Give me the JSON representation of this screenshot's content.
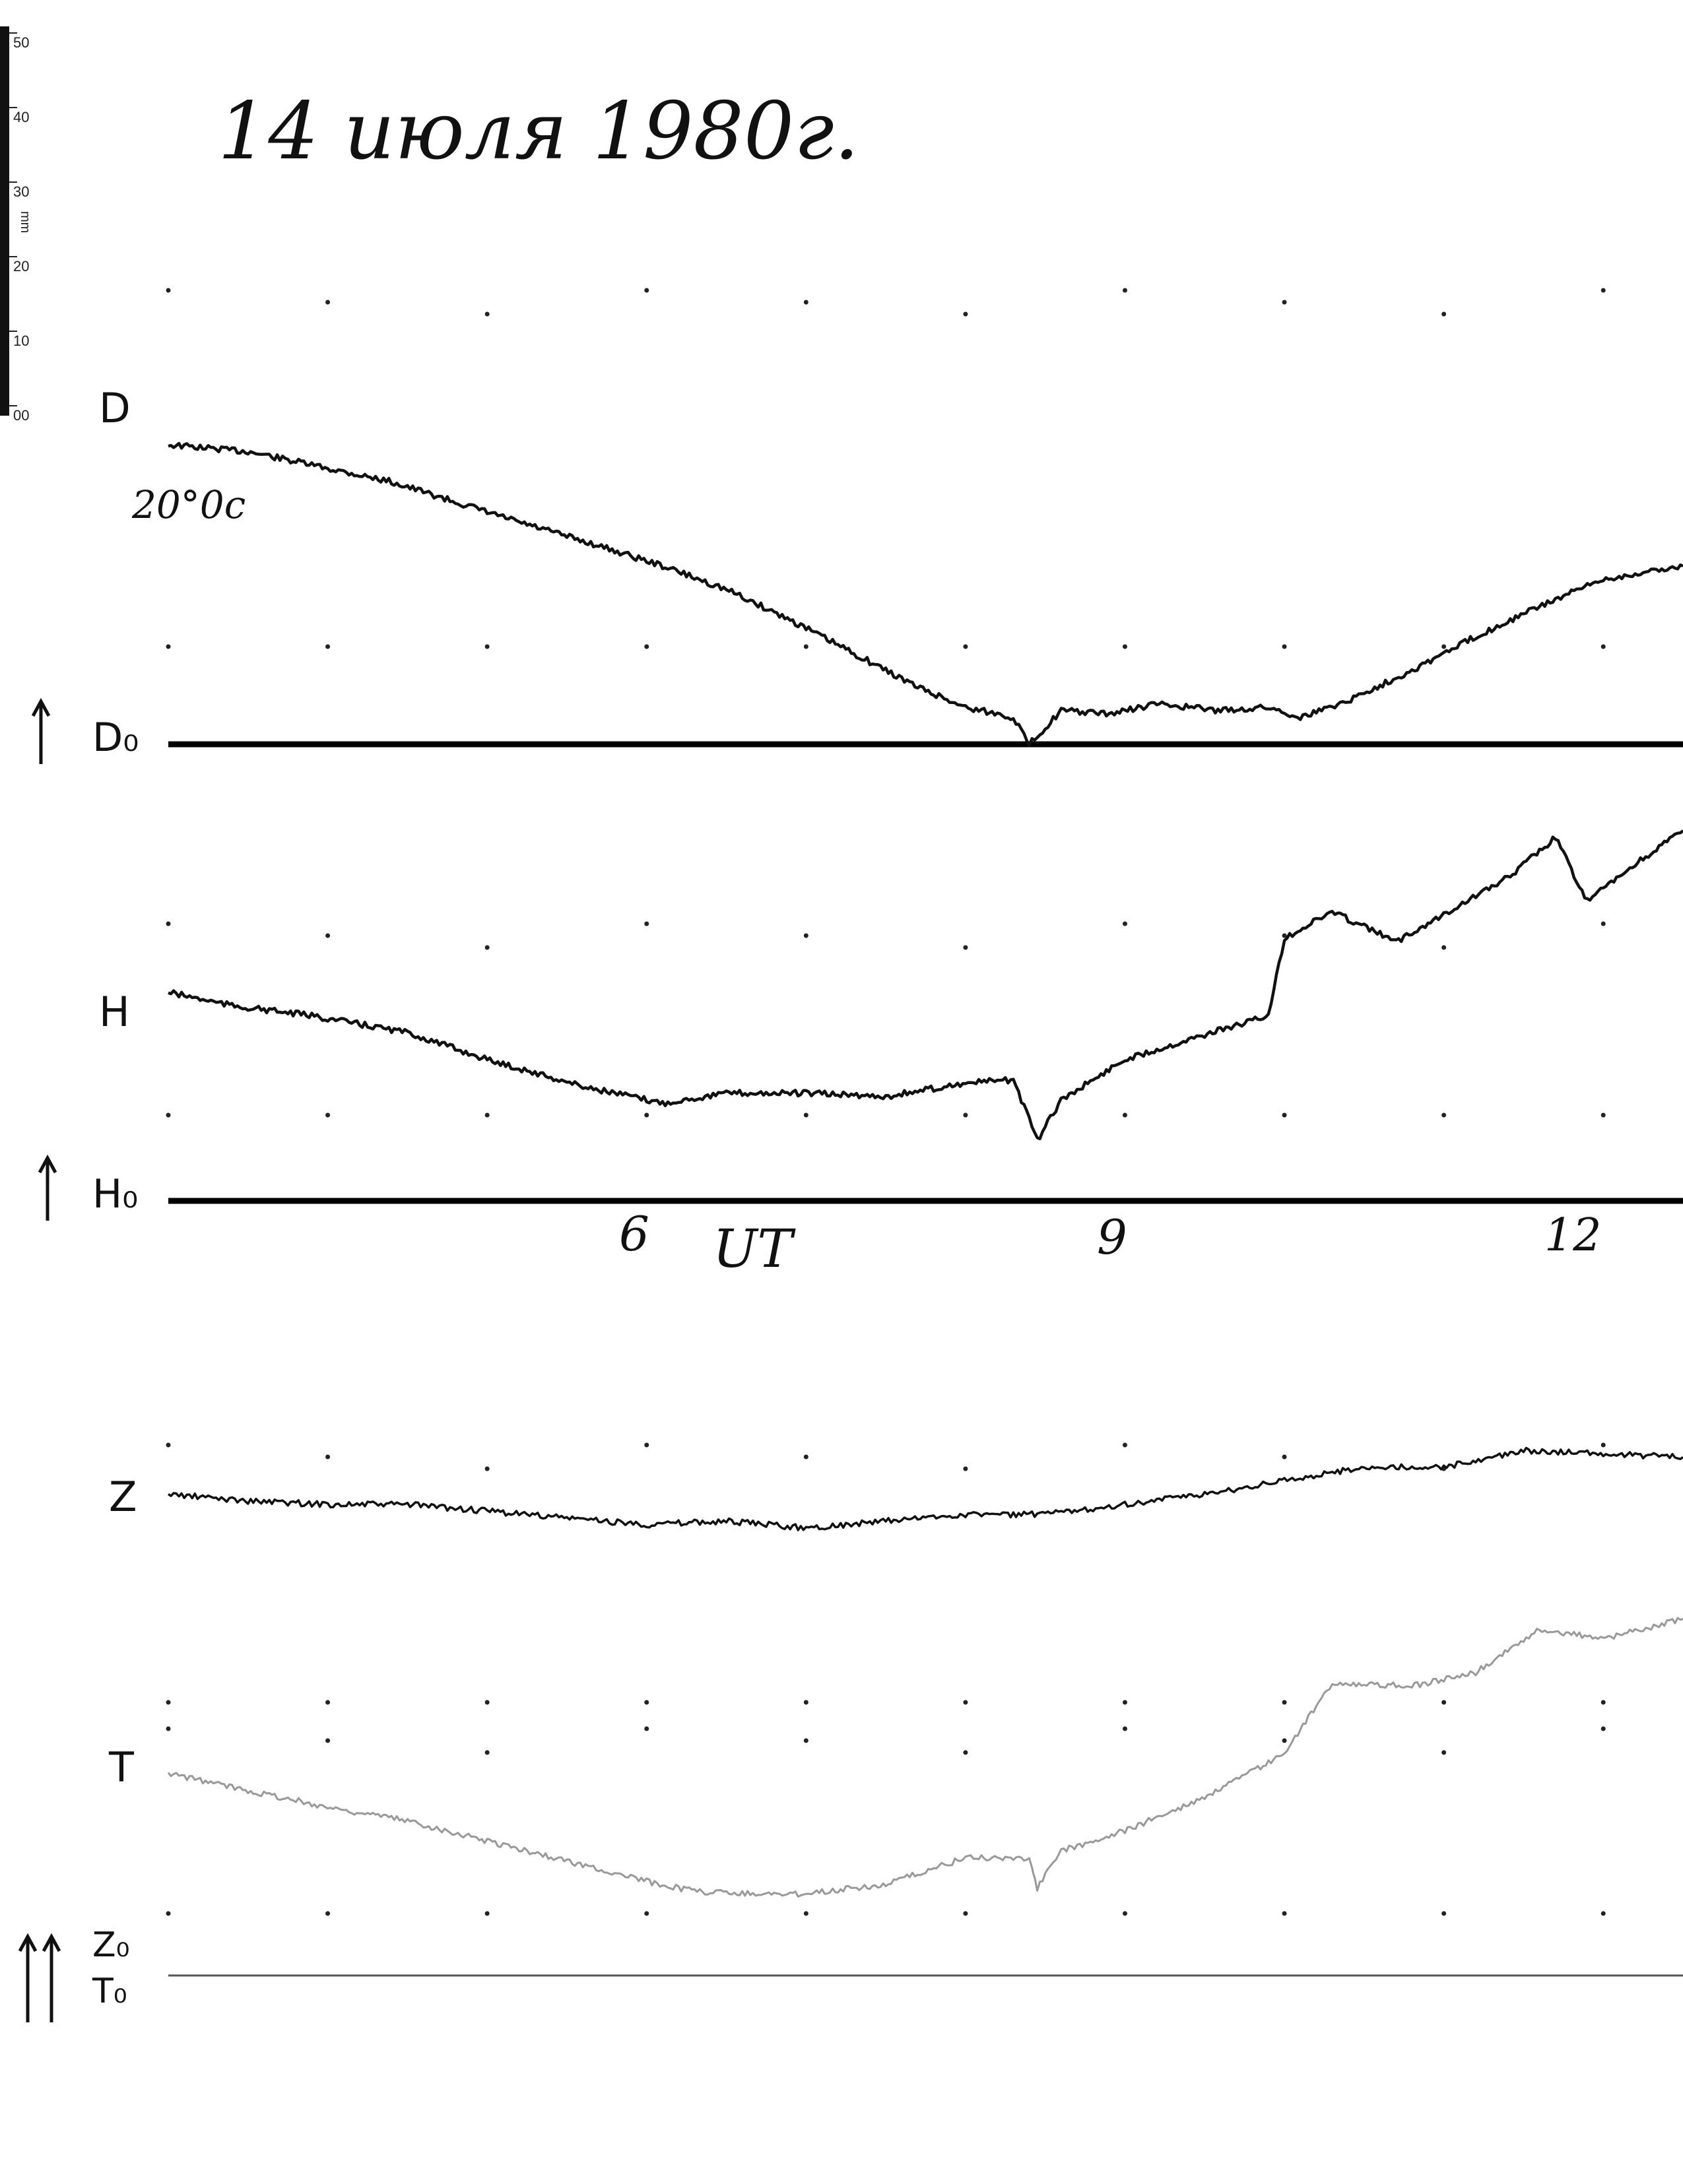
{
  "title": "14 июля 1980г.",
  "scale_label": "20°0с",
  "ruler": {
    "unit": "mm",
    "ticks": [
      "50",
      "40",
      "30",
      "20",
      "10",
      "00"
    ]
  },
  "time_axis": {
    "ticks": [
      "6",
      "9",
      "12"
    ],
    "label": "UT"
  },
  "chart_data": {
    "type": "line",
    "x_unit": "UT hours",
    "xlim": [
      3.0,
      12.5
    ],
    "panels": [
      {
        "name": "D",
        "baseline_label": "D₀",
        "trace": [
          [
            3.0,
            8.9
          ],
          [
            3.5,
            8.7
          ],
          [
            3.9,
            8.3
          ],
          [
            4.4,
            7.8
          ],
          [
            4.8,
            7.2
          ],
          [
            5.2,
            6.6
          ],
          [
            5.7,
            5.9
          ],
          [
            6.1,
            5.3
          ],
          [
            6.5,
            4.6
          ],
          [
            6.9,
            3.7
          ],
          [
            7.3,
            2.7
          ],
          [
            7.7,
            1.7
          ],
          [
            8.0,
            1.1
          ],
          [
            8.3,
            0.8
          ],
          [
            8.4,
            0.0
          ],
          [
            8.6,
            1.0
          ],
          [
            8.9,
            0.9
          ],
          [
            9.2,
            1.2
          ],
          [
            9.6,
            1.0
          ],
          [
            9.9,
            1.1
          ],
          [
            10.1,
            0.8
          ],
          [
            10.4,
            1.3
          ],
          [
            10.8,
            2.2
          ],
          [
            11.2,
            3.2
          ],
          [
            11.6,
            4.1
          ],
          [
            12.0,
            4.9
          ],
          [
            12.5,
            5.3
          ]
        ]
      },
      {
        "name": "H",
        "baseline_label": "H₀",
        "trace": [
          [
            3.0,
            6.2
          ],
          [
            3.4,
            5.8
          ],
          [
            3.9,
            5.5
          ],
          [
            4.5,
            5.0
          ],
          [
            5.0,
            4.2
          ],
          [
            5.6,
            3.4
          ],
          [
            6.1,
            2.9
          ],
          [
            6.5,
            3.2
          ],
          [
            7.0,
            3.2
          ],
          [
            7.5,
            3.1
          ],
          [
            8.0,
            3.5
          ],
          [
            8.3,
            3.6
          ],
          [
            8.45,
            1.8
          ],
          [
            8.6,
            3.0
          ],
          [
            9.0,
            4.2
          ],
          [
            9.4,
            4.8
          ],
          [
            9.9,
            5.5
          ],
          [
            10.0,
            7.8
          ],
          [
            10.3,
            8.6
          ],
          [
            10.7,
            7.7
          ],
          [
            11.1,
            8.8
          ],
          [
            11.4,
            9.6
          ],
          [
            11.7,
            10.8
          ],
          [
            11.9,
            8.9
          ],
          [
            12.2,
            10.0
          ],
          [
            12.5,
            11.0
          ]
        ]
      },
      {
        "name": "Z",
        "baseline_label": "Z₀",
        "trace": [
          [
            3.0,
            14.3
          ],
          [
            3.5,
            14.1
          ],
          [
            4.0,
            14.0
          ],
          [
            4.5,
            14.0
          ],
          [
            5.0,
            13.8
          ],
          [
            5.5,
            13.6
          ],
          [
            6.0,
            13.4
          ],
          [
            6.5,
            13.5
          ],
          [
            7.0,
            13.3
          ],
          [
            7.5,
            13.5
          ],
          [
            8.0,
            13.7
          ],
          [
            8.5,
            13.7
          ],
          [
            9.0,
            14.0
          ],
          [
            9.5,
            14.3
          ],
          [
            10.0,
            14.7
          ],
          [
            10.5,
            15.1
          ],
          [
            11.0,
            15.1
          ],
          [
            11.5,
            15.6
          ],
          [
            12.0,
            15.5
          ],
          [
            12.5,
            15.4
          ]
        ]
      },
      {
        "name": "T",
        "baseline_label": "T₀",
        "trace": [
          [
            3.0,
            6.0
          ],
          [
            3.5,
            5.5
          ],
          [
            4.0,
            5.0
          ],
          [
            4.5,
            4.6
          ],
          [
            5.0,
            4.0
          ],
          [
            5.5,
            3.4
          ],
          [
            6.0,
            2.8
          ],
          [
            6.3,
            2.5
          ],
          [
            6.9,
            2.4
          ],
          [
            7.5,
            2.7
          ],
          [
            8.0,
            3.5
          ],
          [
            8.4,
            3.5
          ],
          [
            8.45,
            2.6
          ],
          [
            8.6,
            3.7
          ],
          [
            9.0,
            4.3
          ],
          [
            9.5,
            5.3
          ],
          [
            10.0,
            6.6
          ],
          [
            10.3,
            8.7
          ],
          [
            10.8,
            8.6
          ],
          [
            11.2,
            9.0
          ],
          [
            11.6,
            10.3
          ],
          [
            12.0,
            10.0
          ],
          [
            12.5,
            10.6
          ]
        ]
      }
    ]
  }
}
